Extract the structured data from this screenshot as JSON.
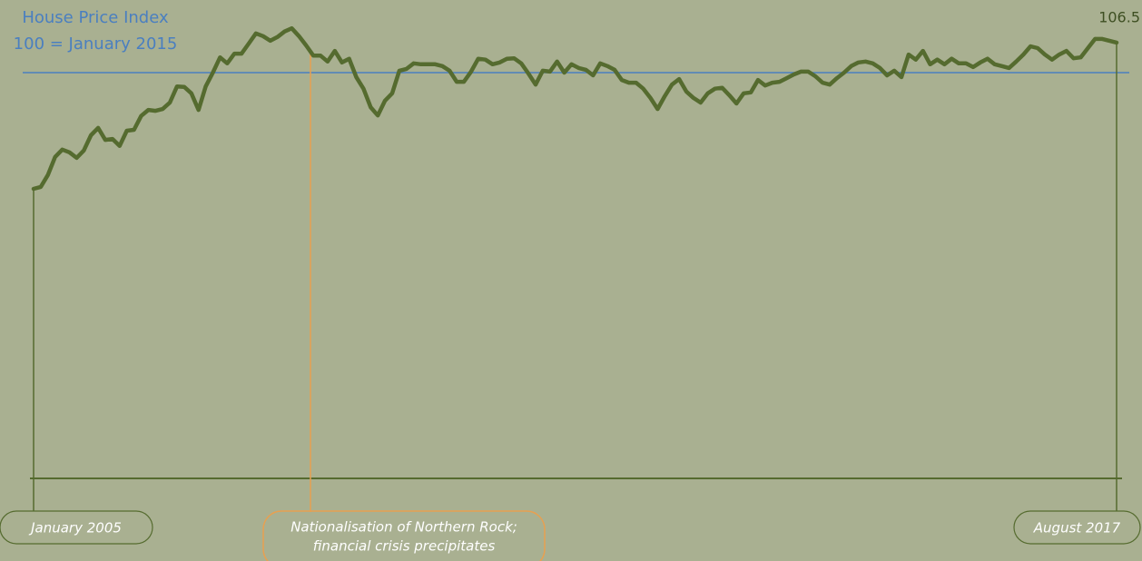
{
  "chart_data": {
    "type": "line",
    "reference_label": [
      "House Price Index",
      "100 = January 2015"
    ],
    "reference_value": 100,
    "reference_color": "#4a7fc0",
    "annotation": [
      "Nationalisation of Northern Rock;",
      "financial crisis precipitates"
    ],
    "annotation_color": "#e8a050",
    "color": "#556b2f",
    "ylim": [
      12,
      112
    ],
    "categories": [
      "January 2005",
      null,
      null,
      null,
      null,
      null,
      null,
      null,
      null,
      null,
      null,
      null,
      null,
      null,
      null,
      null,
      null,
      null,
      null,
      null,
      null,
      null,
      null,
      null,
      null,
      null,
      null,
      null,
      null,
      null,
      null,
      null,
      null,
      null,
      null,
      null,
      null,
      null,
      null,
      null,
      null,
      null,
      null,
      null,
      null,
      null,
      null,
      null,
      null,
      null,
      null,
      null,
      null,
      null,
      null,
      null,
      null,
      null,
      null,
      null,
      null,
      null,
      null,
      null,
      null,
      null,
      null,
      null,
      null,
      null,
      null,
      null,
      null,
      null,
      null,
      null,
      null,
      null,
      null,
      null,
      null,
      null,
      null,
      null,
      null,
      null,
      null,
      null,
      null,
      null,
      null,
      null,
      null,
      null,
      null,
      null,
      null,
      null,
      null,
      null,
      null,
      null,
      null,
      null,
      null,
      null,
      null,
      null,
      null,
      null,
      null,
      null,
      null,
      null,
      null,
      null,
      null,
      null,
      null,
      null,
      null,
      null,
      null,
      null,
      null,
      null,
      null,
      null,
      null,
      null,
      null,
      null,
      null,
      null,
      null,
      null,
      null,
      null,
      null,
      null,
      null,
      null,
      null,
      null,
      null,
      null,
      null,
      null,
      null,
      null,
      null,
      "August 2017"
    ],
    "values": [
      74.8,
      75.2,
      77.8,
      81.7,
      83.3,
      82.7,
      81.5,
      83.1,
      86.4,
      88.0,
      85.4,
      85.6,
      84.1,
      87.4,
      87.6,
      90.6,
      91.9,
      91.7,
      92.1,
      93.5,
      97.0,
      96.9,
      95.5,
      91.9,
      97.0,
      100,
      103.3,
      102,
      104.1,
      104.1,
      106.3,
      108.5,
      107.9,
      106.9,
      107.7,
      108.9,
      109.6,
      107.9,
      105.9,
      103.7,
      103.7,
      102.4,
      104.7,
      102.2,
      103,
      99,
      96.5,
      92.5,
      90.7,
      93.9,
      95.5,
      100.4,
      100.8,
      102,
      101.8,
      101.8,
      101.8,
      101.4,
      100.4,
      98,
      98,
      100.2,
      103,
      102.8,
      101.8,
      102.2,
      103,
      103.1,
      102,
      99.8,
      97.4,
      100.4,
      100.2,
      102.4,
      100,
      101.8,
      101,
      100.6,
      99.4,
      102,
      101.4,
      100.6,
      98.4,
      97.8,
      97.8,
      96.5,
      94.5,
      92.1,
      94.9,
      97.4,
      98.6,
      95.9,
      94.5,
      93.5,
      95.5,
      96.5,
      96.7,
      95.1,
      93.3,
      95.5,
      95.7,
      98.4,
      97.2,
      97.8,
      98,
      98.8,
      99.6,
      100.2,
      100.2,
      99.2,
      97.8,
      97.4,
      98.8,
      100,
      101.4,
      102.2,
      102.4,
      102,
      101,
      99.4,
      100.4,
      99,
      103.9,
      102.8,
      104.7,
      101.8,
      102.8,
      101.8,
      103,
      102,
      102,
      101.2,
      102.2,
      103,
      101.8,
      101.4,
      101,
      102.4,
      103.9,
      105.7,
      105.3,
      103.9,
      102.8,
      103.9,
      104.7,
      103.1,
      103.3,
      105.3,
      107.3,
      107.3,
      106.9,
      106.5
    ]
  }
}
